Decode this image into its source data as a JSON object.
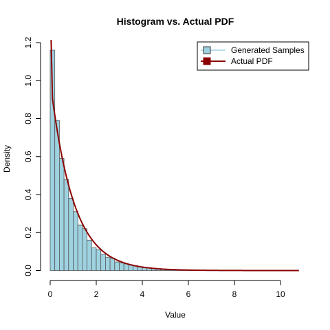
{
  "chart_data": {
    "type": "bar",
    "title": "Histogram vs. Actual PDF",
    "xlabel": "Value",
    "ylabel": "Density",
    "xlim": [
      0,
      10.8
    ],
    "ylim": [
      0,
      1.2
    ],
    "x_ticks": [
      "0",
      "2",
      "4",
      "6",
      "8",
      "10"
    ],
    "y_ticks": [
      "0.0",
      "0.2",
      "0.4",
      "0.6",
      "0.8",
      "1.0",
      "1.2"
    ],
    "legend_position": "top-right",
    "bin_width": 0.2,
    "histogram": {
      "name": "Generated Samples",
      "color": "#9ed2e0",
      "edge_color": "#555555",
      "bin_starts": [
        0.0,
        0.2,
        0.4,
        0.6,
        0.8,
        1.0,
        1.2,
        1.4,
        1.6,
        1.8,
        2.0,
        2.2,
        2.4,
        2.6,
        2.8,
        3.0,
        3.2,
        3.4,
        3.6,
        3.8,
        4.0,
        4.2,
        4.4,
        4.6,
        4.8,
        5.0,
        5.2,
        5.4,
        5.6,
        5.8,
        6.0,
        6.2
      ],
      "densities": [
        1.16,
        0.79,
        0.59,
        0.48,
        0.38,
        0.31,
        0.24,
        0.22,
        0.16,
        0.12,
        0.11,
        0.085,
        0.07,
        0.065,
        0.045,
        0.04,
        0.035,
        0.03,
        0.025,
        0.02,
        0.015,
        0.015,
        0.01,
        0.01,
        0.008,
        0.006,
        0.005,
        0.004,
        0.003,
        0.003,
        0.002,
        0.002
      ]
    },
    "pdf_line": {
      "name": "Actual PDF",
      "color": "#8b0000",
      "x_start": 0.1,
      "x_end": 10.8
    }
  }
}
